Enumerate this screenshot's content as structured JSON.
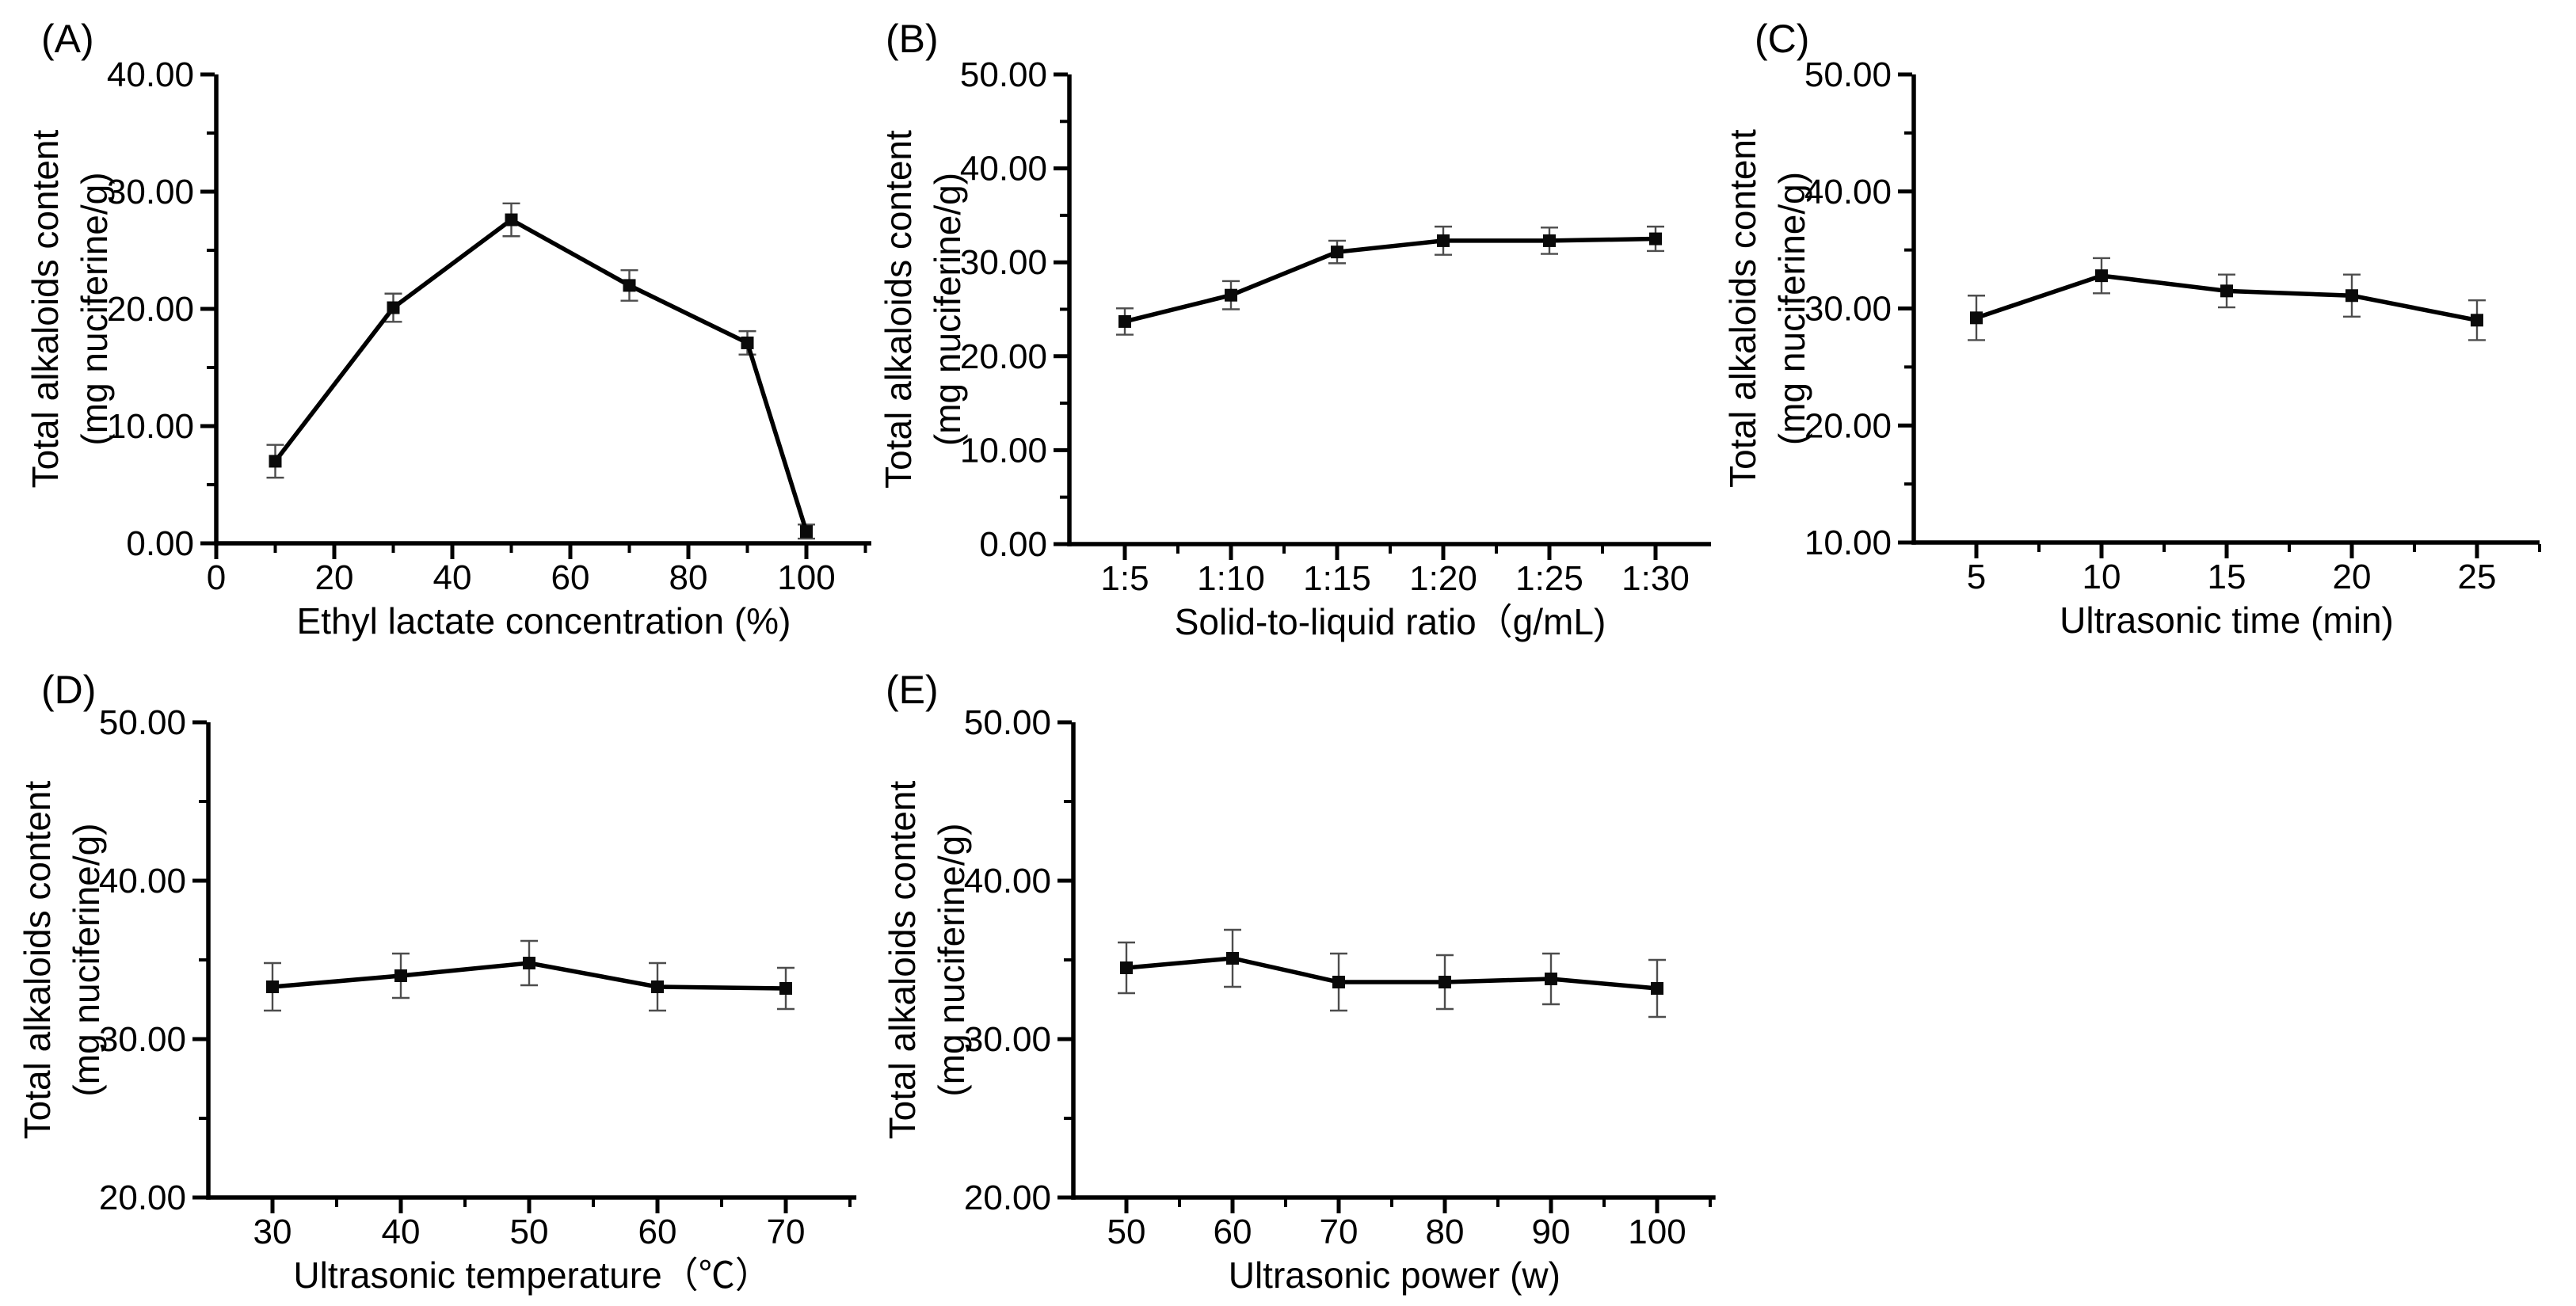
{
  "figure": {
    "background": "#ffffff",
    "panel_labels": [
      "(A)",
      "(B)",
      "(C)",
      "(D)",
      "(E)"
    ]
  },
  "colors": {
    "line": "#000000",
    "marker": "#0a0a0a",
    "error_bar": "#4d4d4d",
    "axis": "#000000",
    "text": "#000000"
  },
  "chart_data": [
    {
      "type": "line",
      "panel_id": "a",
      "panel_label": "(A)",
      "xlabel": "Ethyl lactate concentration (%)",
      "ylabel_lines": [
        "Total alkaloids content",
        "(mg nuciferine/g)"
      ],
      "x": [
        10,
        30,
        50,
        70,
        90,
        100
      ],
      "values": [
        7.0,
        20.1,
        27.6,
        22.0,
        17.1,
        1.0
      ],
      "errors": [
        1.4,
        1.2,
        1.4,
        1.3,
        1.0,
        0.6
      ],
      "xlim": [
        0,
        111
      ],
      "xticks": [
        0,
        20,
        40,
        60,
        80,
        100
      ],
      "xminor": [
        10,
        30,
        50,
        70,
        90,
        110
      ],
      "ylim": [
        0,
        40
      ],
      "yticks": [
        0,
        10,
        20,
        30,
        40
      ],
      "ytick_labels": [
        "0.00",
        "10.00",
        "20.00",
        "30.00",
        "40.00"
      ],
      "yminor": [
        5,
        15,
        25,
        35
      ],
      "grid": false,
      "legend": null
    },
    {
      "type": "line",
      "panel_id": "b",
      "panel_label": "(B)",
      "xlabel": "Solid-to-liquid ratio（g/mL)",
      "ylabel_lines": [
        "Total alkaloids content",
        "(mg nuciferine/g)"
      ],
      "categories": [
        "1:5",
        "1:10",
        "1:15",
        "1:20",
        "1:25",
        "1:30"
      ],
      "values": [
        23.7,
        26.5,
        31.1,
        32.3,
        32.3,
        32.5
      ],
      "errors": [
        1.4,
        1.5,
        1.2,
        1.5,
        1.4,
        1.3
      ],
      "ylim": [
        0,
        50
      ],
      "yticks": [
        0,
        10,
        20,
        30,
        40,
        50
      ],
      "ytick_labels": [
        "0.00",
        "10.00",
        "20.00",
        "30.00",
        "40.00",
        "50.00"
      ],
      "yminor": [
        5,
        15,
        25,
        35,
        45
      ],
      "grid": false,
      "legend": null
    },
    {
      "type": "line",
      "panel_id": "c",
      "panel_label": "(C)",
      "xlabel": "Ultrasonic time (min)",
      "ylabel_lines": [
        "Total alkaloids content",
        "(mg nuciferine/g)"
      ],
      "x": [
        5,
        10,
        15,
        20,
        25
      ],
      "values": [
        29.2,
        32.8,
        31.5,
        31.1,
        29.0
      ],
      "errors": [
        1.9,
        1.5,
        1.4,
        1.8,
        1.7
      ],
      "xlim": [
        2.5,
        27.5
      ],
      "xticks": [
        5,
        10,
        15,
        20,
        25
      ],
      "xminor": [
        7.5,
        12.5,
        17.5,
        22.5,
        27.5
      ],
      "ylim": [
        10,
        50
      ],
      "yticks": [
        10,
        20,
        30,
        40,
        50
      ],
      "ytick_labels": [
        "10.00",
        "20.00",
        "30.00",
        "40.00",
        "50.00"
      ],
      "yminor": [
        15,
        25,
        35,
        45
      ],
      "grid": false,
      "legend": null
    },
    {
      "type": "line",
      "panel_id": "d",
      "panel_label": "(D)",
      "xlabel": "Ultrasonic temperature（℃）",
      "ylabel_lines": [
        "Total alkaloids content",
        "(mg nuciferine/g)"
      ],
      "x": [
        30,
        40,
        50,
        60,
        70
      ],
      "values": [
        33.3,
        34.0,
        34.8,
        33.3,
        33.2
      ],
      "errors": [
        1.5,
        1.4,
        1.4,
        1.5,
        1.3
      ],
      "xlim": [
        25,
        75.5
      ],
      "xticks": [
        30,
        40,
        50,
        60,
        70
      ],
      "xminor": [
        35,
        45,
        55,
        65,
        75
      ],
      "ylim": [
        20,
        50
      ],
      "yticks": [
        20,
        30,
        40,
        50
      ],
      "ytick_labels": [
        "20.00",
        "30.00",
        "40.00",
        "50.00"
      ],
      "yminor": [
        25,
        35,
        45
      ],
      "grid": false,
      "legend": null
    },
    {
      "type": "line",
      "panel_id": "e",
      "panel_label": "(E)",
      "xlabel": "Ultrasonic power (w)",
      "ylabel_lines": [
        "Total alkaloids content",
        "(mg nuciferine/g)"
      ],
      "x": [
        50,
        60,
        70,
        80,
        90,
        100
      ],
      "values": [
        34.5,
        35.1,
        33.6,
        33.6,
        33.8,
        33.2
      ],
      "errors": [
        1.6,
        1.8,
        1.8,
        1.7,
        1.6,
        1.8
      ],
      "xlim": [
        45,
        105.5
      ],
      "xticks": [
        50,
        60,
        70,
        80,
        90,
        100
      ],
      "xminor": [
        55,
        65,
        75,
        85,
        95,
        105
      ],
      "ylim": [
        20,
        50
      ],
      "yticks": [
        20,
        30,
        40,
        50
      ],
      "ytick_labels": [
        "20.00",
        "30.00",
        "40.00",
        "50.00"
      ],
      "yminor": [
        25,
        35,
        45
      ],
      "grid": false,
      "legend": null
    }
  ]
}
